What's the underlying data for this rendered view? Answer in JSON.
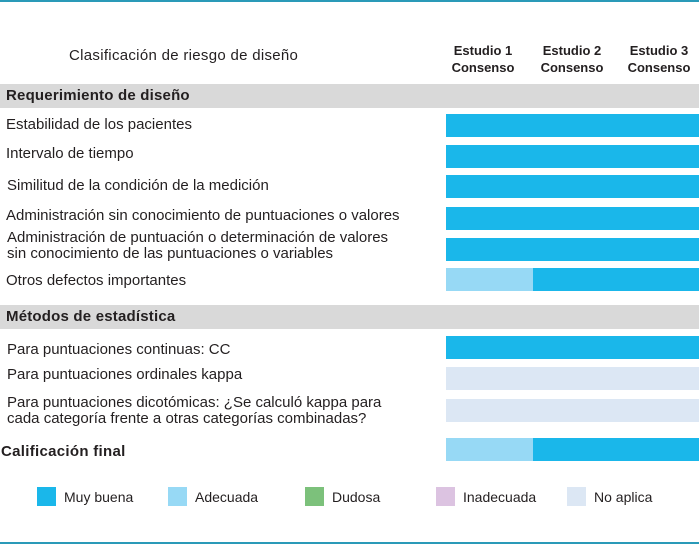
{
  "chart_data": {
    "type": "table",
    "title": "Clasificación de riesgo de diseño",
    "columns": [
      {
        "line1": "Estudio 1",
        "line2": "Consenso"
      },
      {
        "line1": "Estudio 2",
        "line2": "Consenso"
      },
      {
        "line1": "Estudio 3",
        "line2": "Consenso"
      }
    ],
    "sections": [
      {
        "name": "Requerimiento de diseño",
        "rows": [
          {
            "label": [
              "Estabilidad de los pacientes"
            ],
            "ratings": [
              "muy_buena",
              "muy_buena",
              "muy_buena"
            ]
          },
          {
            "label": [
              "Intervalo de tiempo"
            ],
            "ratings": [
              "muy_buena",
              "muy_buena",
              "muy_buena"
            ]
          },
          {
            "label": [
              "Similitud de la condición de la medición"
            ],
            "ratings": [
              "muy_buena",
              "muy_buena",
              "muy_buena"
            ]
          },
          {
            "label": [
              "Administración sin conocimiento de puntuaciones o valores"
            ],
            "ratings": [
              "muy_buena",
              "muy_buena",
              "muy_buena"
            ]
          },
          {
            "label": [
              "Administración de puntuación o determinación de valores",
              "sin conocimiento de las puntuaciones o variables"
            ],
            "ratings": [
              "muy_buena",
              "muy_buena",
              "muy_buena"
            ]
          },
          {
            "label": [
              "Otros defectos importantes"
            ],
            "ratings": [
              "adecuada",
              "muy_buena",
              "muy_buena"
            ]
          }
        ]
      },
      {
        "name": "Métodos de estadística",
        "rows": [
          {
            "label": [
              "Para puntuaciones continuas: CC"
            ],
            "ratings": [
              "muy_buena",
              "muy_buena",
              "muy_buena"
            ]
          },
          {
            "label": [
              "Para puntuaciones ordinales kappa"
            ],
            "ratings": [
              "no_aplica",
              "no_aplica",
              "no_aplica"
            ]
          },
          {
            "label": [
              "Para puntuaciones dicotómicas: ¿Se calculó kappa para",
              "cada categoría frente a otras categorías combinadas?"
            ],
            "ratings": [
              "no_aplica",
              "no_aplica",
              "no_aplica"
            ]
          }
        ]
      }
    ],
    "final": {
      "label": "Calificación final",
      "ratings": [
        "adecuada",
        "muy_buena",
        "muy_buena"
      ]
    },
    "legend": [
      {
        "key": "muy_buena",
        "label": "Muy buena",
        "color": "#1ab7ea"
      },
      {
        "key": "adecuada",
        "label": "Adecuada",
        "color": "#97d9f5"
      },
      {
        "key": "dudosa",
        "label": "Dudosa",
        "color": "#7cc17b"
      },
      {
        "key": "inadecuada",
        "label": "Inadecuada",
        "color": "#dcc3e1"
      },
      {
        "key": "no_aplica",
        "label": "No aplica",
        "color": "#dce7f4"
      }
    ]
  },
  "colors": {
    "rule": "#2a9ab8",
    "section_bg": "#d9d9d9"
  }
}
